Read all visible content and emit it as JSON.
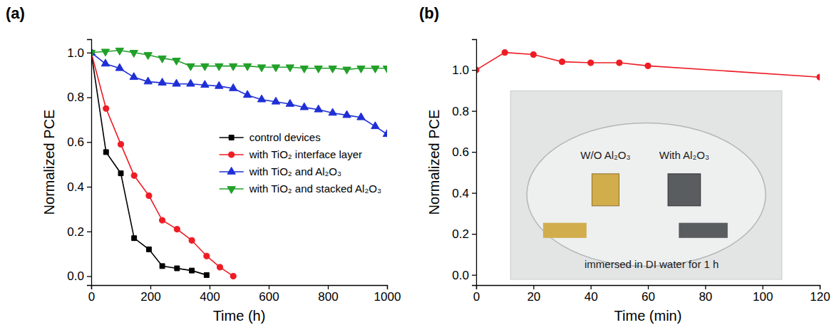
{
  "chart_data": [
    {
      "type": "line",
      "panel_label": "(a)",
      "x_label": "Time (h)",
      "y_label": "Normalized PCE",
      "xlim": [
        0,
        1000
      ],
      "xticks": [
        0,
        200,
        400,
        600,
        800,
        1000
      ],
      "ylim": [
        -0.04,
        1.06
      ],
      "yticks": [
        {
          "value": 0.0,
          "label": "0.0"
        },
        {
          "value": 0.2,
          "label": "0.2"
        },
        {
          "value": 0.4,
          "label": "0.4"
        },
        {
          "value": 0.6,
          "label": "0.6"
        },
        {
          "value": 0.8,
          "label": "0.8"
        },
        {
          "value": 1.0,
          "label": "1.0"
        }
      ],
      "legend": "right",
      "series": [
        {
          "name": "control devices",
          "color": "#000000",
          "marker": "square",
          "x": [
            0,
            50,
            100,
            145,
            195,
            240,
            290,
            340,
            390
          ],
          "values": [
            1.0,
            0.555,
            0.46,
            0.17,
            0.12,
            0.045,
            0.035,
            0.025,
            0.005
          ]
        },
        {
          "name": "with TiO₂ interface layer",
          "color": "#ee1c25",
          "marker": "circle",
          "x": [
            0,
            50,
            100,
            145,
            195,
            240,
            290,
            340,
            390,
            435,
            480
          ],
          "values": [
            1.0,
            0.75,
            0.59,
            0.45,
            0.36,
            0.25,
            0.21,
            0.16,
            0.09,
            0.04,
            0.0
          ]
        },
        {
          "name": "with TiO₂ and Al₂O₃",
          "color": "#1f2fd6",
          "marker": "triangle-up",
          "x": [
            0,
            48,
            96,
            144,
            192,
            240,
            288,
            336,
            384,
            432,
            480,
            528,
            576,
            624,
            672,
            720,
            768,
            816,
            864,
            912,
            960,
            1000
          ],
          "values": [
            1.0,
            0.95,
            0.93,
            0.89,
            0.87,
            0.865,
            0.86,
            0.86,
            0.855,
            0.85,
            0.84,
            0.81,
            0.79,
            0.78,
            0.77,
            0.755,
            0.745,
            0.73,
            0.72,
            0.71,
            0.67,
            0.635
          ]
        },
        {
          "name": "with TiO₂ and stacked Al₂O₃",
          "color": "#22a02a",
          "marker": "triangle-down",
          "x": [
            0,
            48,
            96,
            144,
            192,
            240,
            288,
            336,
            384,
            432,
            480,
            528,
            576,
            624,
            672,
            720,
            768,
            816,
            864,
            912,
            960,
            1000
          ],
          "values": [
            1.0,
            1.005,
            1.01,
            1.0,
            0.99,
            0.975,
            0.965,
            0.94,
            0.94,
            0.94,
            0.94,
            0.94,
            0.935,
            0.935,
            0.935,
            0.93,
            0.93,
            0.93,
            0.925,
            0.93,
            0.93,
            0.93
          ]
        }
      ]
    },
    {
      "type": "line",
      "panel_label": "(b)",
      "x_label": "Time (min)",
      "y_label": "Normalized PCE",
      "xlim": [
        0,
        120
      ],
      "xticks": [
        0,
        20,
        40,
        60,
        80,
        100,
        120
      ],
      "ylim": [
        -0.05,
        1.15
      ],
      "yticks": [
        {
          "value": 0.0,
          "label": "0.0"
        },
        {
          "value": 0.2,
          "label": "0.2"
        },
        {
          "value": 0.4,
          "label": "0.4"
        },
        {
          "value": 0.6,
          "label": "0.6"
        },
        {
          "value": 0.8,
          "label": "0.8"
        },
        {
          "value": 1.0,
          "label": "1.0"
        }
      ],
      "x": [
        0,
        10,
        20,
        30,
        40,
        50,
        60,
        120
      ],
      "values": [
        1.0,
        1.085,
        1.075,
        1.04,
        1.035,
        1.035,
        1.02,
        0.965
      ],
      "color": "#ee1c25",
      "marker": "circle",
      "annotations": [
        "W/O Al₂O₃",
        "With Al₂O₃",
        "immersed in DI water for 1 h"
      ]
    }
  ]
}
